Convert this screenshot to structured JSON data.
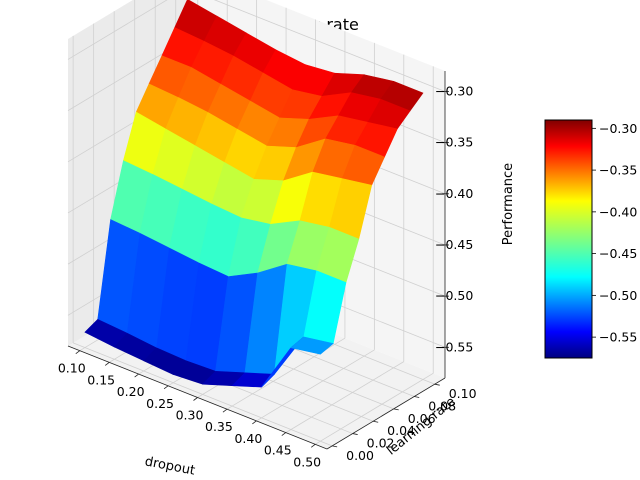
{
  "chart_data": {
    "type": "surface3d",
    "title": "dropout and learning rate",
    "xlabel": "dropout",
    "ylabel": "learning rate",
    "zlabel": "Performance",
    "xlim": [
      0.08,
      0.52
    ],
    "ylim": [
      -0.005,
      0.11
    ],
    "zlim": [
      -0.58,
      -0.28
    ],
    "x_ticks": [
      "0.10",
      "0.15",
      "0.20",
      "0.25",
      "0.30",
      "0.35",
      "0.40",
      "0.45",
      "0.50"
    ],
    "y_ticks": [
      "0.00",
      "0.02",
      "0.04",
      "0.06",
      "0.08",
      "0.10"
    ],
    "z_ticks": [
      "−0.30",
      "−0.35",
      "−0.40",
      "−0.45",
      "−0.50",
      "−0.55"
    ],
    "colorbar": {
      "colormap": "jet",
      "range": [
        -0.575,
        -0.29
      ],
      "ticks": [
        "−0.30",
        "−0.35",
        "−0.40",
        "−0.45",
        "−0.50",
        "−0.55"
      ]
    },
    "grid": true,
    "x": [
      0.1,
      0.15,
      0.2,
      0.25,
      0.3,
      0.35,
      0.4,
      0.45,
      0.5
    ],
    "y": [
      0.0,
      0.0125,
      0.025,
      0.0375,
      0.05,
      0.0625,
      0.075,
      0.0875,
      0.1
    ],
    "z": [
      [
        -0.565,
        -0.568,
        -0.57,
        -0.572,
        -0.57,
        -0.56,
        -0.55,
        -0.5,
        -0.495
      ],
      [
        -0.56,
        -0.562,
        -0.565,
        -0.566,
        -0.565,
        -0.555,
        -0.545,
        -0.497,
        -0.492
      ],
      [
        -0.47,
        -0.472,
        -0.475,
        -0.478,
        -0.48,
        -0.465,
        -0.445,
        -0.44,
        -0.44
      ],
      [
        -0.42,
        -0.422,
        -0.425,
        -0.428,
        -0.43,
        -0.425,
        -0.41,
        -0.405,
        -0.405
      ],
      [
        -0.38,
        -0.385,
        -0.39,
        -0.395,
        -0.4,
        -0.39,
        -0.37,
        -0.365,
        -0.36
      ],
      [
        -0.36,
        -0.362,
        -0.365,
        -0.37,
        -0.375,
        -0.365,
        -0.345,
        -0.34,
        -0.34
      ],
      [
        -0.34,
        -0.34,
        -0.345,
        -0.35,
        -0.355,
        -0.345,
        -0.33,
        -0.325,
        -0.32
      ],
      [
        -0.32,
        -0.322,
        -0.325,
        -0.33,
        -0.335,
        -0.33,
        -0.315,
        -0.31,
        -0.31
      ],
      [
        -0.3,
        -0.305,
        -0.31,
        -0.315,
        -0.318,
        -0.315,
        -0.305,
        -0.3,
        -0.3
      ]
    ]
  }
}
